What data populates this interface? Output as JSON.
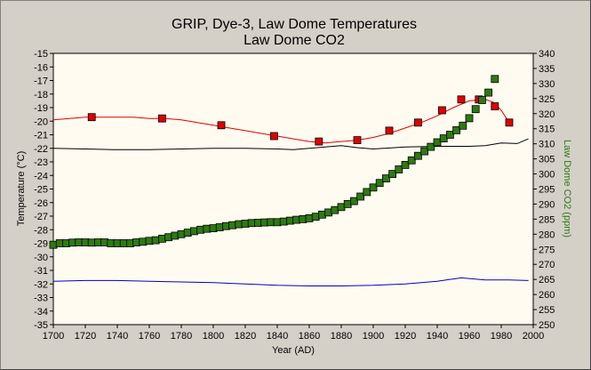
{
  "chart_data": {
    "type": "line",
    "title": "GRIP, Dye-3, Law Dome Temperatures",
    "subtitle": "Law Dome CO2",
    "xlabel": "Year (AD)",
    "ylabel": "Temperature (°C)",
    "y2label": "Law Dome CO2 (ppm)",
    "xlim": [
      1700,
      2000
    ],
    "ylim": [
      -35,
      -15
    ],
    "y2lim": [
      250,
      340
    ],
    "x_ticks": [
      "1700",
      "1720",
      "1740",
      "1760",
      "1780",
      "1800",
      "1820",
      "1840",
      "1860",
      "1880",
      "1900",
      "1920",
      "1940",
      "1960",
      "1980",
      "2000"
    ],
    "y_ticks": [
      "-15",
      "-16",
      "-17",
      "-18",
      "-19",
      "-20",
      "-21",
      "-22",
      "-23",
      "-24",
      "-25",
      "-26",
      "-27",
      "-28",
      "-29",
      "-30",
      "-31",
      "-32",
      "-33",
      "-34",
      "-35"
    ],
    "y2_ticks": [
      "340",
      "335",
      "330",
      "325",
      "320",
      "315",
      "310",
      "305",
      "300",
      "295",
      "290",
      "285",
      "280",
      "275",
      "270",
      "265",
      "260",
      "255",
      "250"
    ],
    "grid": false,
    "plot_background": "#fffbf0",
    "series": [
      {
        "axis": "left",
        "color": "#e00000",
        "style": "line+square-markers",
        "line_x": [
          1700,
          1710,
          1720,
          1730,
          1740,
          1750,
          1760,
          1770,
          1780,
          1790,
          1800,
          1810,
          1820,
          1830,
          1840,
          1850,
          1860,
          1870,
          1880,
          1890,
          1900,
          1910,
          1920,
          1930,
          1940,
          1950,
          1960,
          1970,
          1975,
          1980,
          1985
        ],
        "line_y": [
          -19.9,
          -19.8,
          -19.7,
          -19.7,
          -19.7,
          -19.7,
          -19.8,
          -19.8,
          -19.9,
          -20.1,
          -20.3,
          -20.5,
          -20.7,
          -20.9,
          -21.1,
          -21.3,
          -21.5,
          -21.6,
          -21.5,
          -21.4,
          -21.2,
          -20.9,
          -20.5,
          -20.1,
          -19.6,
          -19.0,
          -18.5,
          -18.4,
          -18.6,
          -19.2,
          -20.1
        ],
        "marker_x": [
          1724,
          1768,
          1805,
          1838,
          1866,
          1890,
          1910,
          1928,
          1943,
          1955,
          1966,
          1976,
          1985
        ],
        "marker_y": [
          -19.7,
          -19.8,
          -20.3,
          -21.1,
          -21.5,
          -21.4,
          -20.7,
          -20.1,
          -19.2,
          -18.4,
          -18.4,
          -18.9,
          -20.1
        ]
      },
      {
        "axis": "left",
        "color": "#000000",
        "style": "line",
        "x": [
          1700,
          1720,
          1740,
          1760,
          1780,
          1800,
          1820,
          1840,
          1850,
          1860,
          1870,
          1880,
          1890,
          1900,
          1920,
          1940,
          1960,
          1970,
          1980,
          1990,
          1997
        ],
        "y": [
          -22.0,
          -22.05,
          -22.1,
          -22.1,
          -22.05,
          -22.0,
          -22.0,
          -22.05,
          -22.1,
          -22.0,
          -21.9,
          -21.8,
          -21.95,
          -22.05,
          -21.9,
          -21.85,
          -21.85,
          -21.8,
          -21.6,
          -21.65,
          -21.3
        ]
      },
      {
        "axis": "left",
        "color": "#0000c8",
        "style": "line",
        "x": [
          1700,
          1720,
          1740,
          1760,
          1780,
          1800,
          1820,
          1840,
          1860,
          1880,
          1900,
          1920,
          1940,
          1955,
          1970,
          1985,
          1997
        ],
        "y": [
          -31.8,
          -31.75,
          -31.75,
          -31.8,
          -31.85,
          -31.9,
          -32.0,
          -32.1,
          -32.15,
          -32.15,
          -32.1,
          -32.0,
          -31.8,
          -31.55,
          -31.7,
          -31.7,
          -31.75
        ]
      },
      {
        "axis": "right",
        "color": "#2e7a12",
        "style": "square-markers",
        "x": [
          1700,
          1704,
          1708,
          1712,
          1716,
          1720,
          1724,
          1728,
          1732,
          1736,
          1740,
          1744,
          1748,
          1752,
          1756,
          1760,
          1764,
          1768,
          1772,
          1776,
          1780,
          1784,
          1788,
          1792,
          1796,
          1800,
          1804,
          1808,
          1812,
          1816,
          1820,
          1824,
          1828,
          1832,
          1836,
          1840,
          1844,
          1848,
          1852,
          1856,
          1860,
          1864,
          1868,
          1872,
          1876,
          1880,
          1884,
          1888,
          1892,
          1896,
          1900,
          1904,
          1908,
          1912,
          1916,
          1920,
          1924,
          1928,
          1932,
          1936,
          1940,
          1944,
          1948,
          1952,
          1956,
          1960,
          1964,
          1968,
          1972,
          1976
        ],
        "y": [
          276.5,
          277,
          277,
          277.2,
          277.3,
          277.3,
          277.2,
          277.3,
          277.3,
          277,
          277,
          277,
          277,
          277.3,
          277.5,
          277.8,
          278,
          278.5,
          279,
          279.5,
          280,
          280.5,
          281,
          281.5,
          281.8,
          282,
          282.3,
          282.7,
          283,
          283.3,
          283.5,
          283.7,
          283.8,
          283.9,
          284,
          284,
          284.2,
          284.5,
          284.8,
          285,
          285.3,
          285.8,
          286.5,
          287.2,
          288,
          289,
          290,
          291,
          292.5,
          294,
          295.5,
          297,
          298.5,
          300,
          301.5,
          303,
          304.5,
          306,
          307.5,
          309,
          310.5,
          311.8,
          313,
          314.5,
          316,
          318.5,
          321.5,
          324.5,
          327,
          331.5
        ]
      }
    ]
  }
}
